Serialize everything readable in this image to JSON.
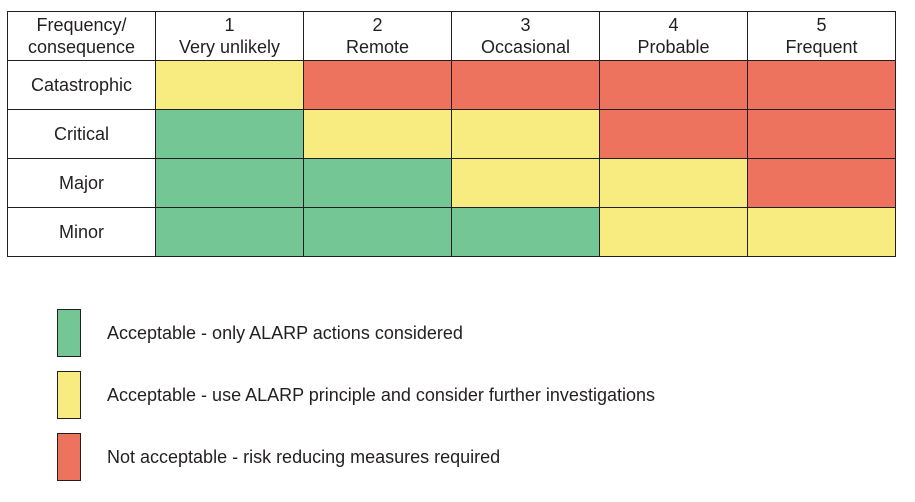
{
  "header": {
    "corner_line1": "Frequency/",
    "corner_line2": "consequence",
    "columns": [
      {
        "number": "1",
        "label": "Very unlikely"
      },
      {
        "number": "2",
        "label": "Remote"
      },
      {
        "number": "3",
        "label": "Occasional"
      },
      {
        "number": "4",
        "label": "Probable"
      },
      {
        "number": "5",
        "label": "Frequent"
      }
    ]
  },
  "rows": [
    {
      "label": "Catastrophic",
      "levels": [
        "acceptable",
        "not_acceptable",
        "not_acceptable",
        "not_acceptable",
        "not_acceptable"
      ]
    },
    {
      "label": "Critical",
      "levels": [
        "alarp",
        "acceptable",
        "acceptable",
        "not_acceptable",
        "not_acceptable"
      ]
    },
    {
      "label": "Major",
      "levels": [
        "alarp",
        "alarp",
        "acceptable",
        "acceptable",
        "not_acceptable"
      ]
    },
    {
      "label": "Minor",
      "levels": [
        "alarp",
        "alarp",
        "alarp",
        "acceptable",
        "acceptable"
      ]
    }
  ],
  "levels": {
    "alarp": {
      "color": "#74c794"
    },
    "acceptable": {
      "color": "#f8ec80"
    },
    "not_acceptable": {
      "color": "#ee735f"
    }
  },
  "legend": [
    {
      "level": "alarp",
      "text": "Acceptable - only ALARP actions considered"
    },
    {
      "level": "acceptable",
      "text": "Acceptable - use ALARP principle and consider further investigations"
    },
    {
      "level": "not_acceptable",
      "text": "Not acceptable - risk reducing measures required"
    }
  ]
}
